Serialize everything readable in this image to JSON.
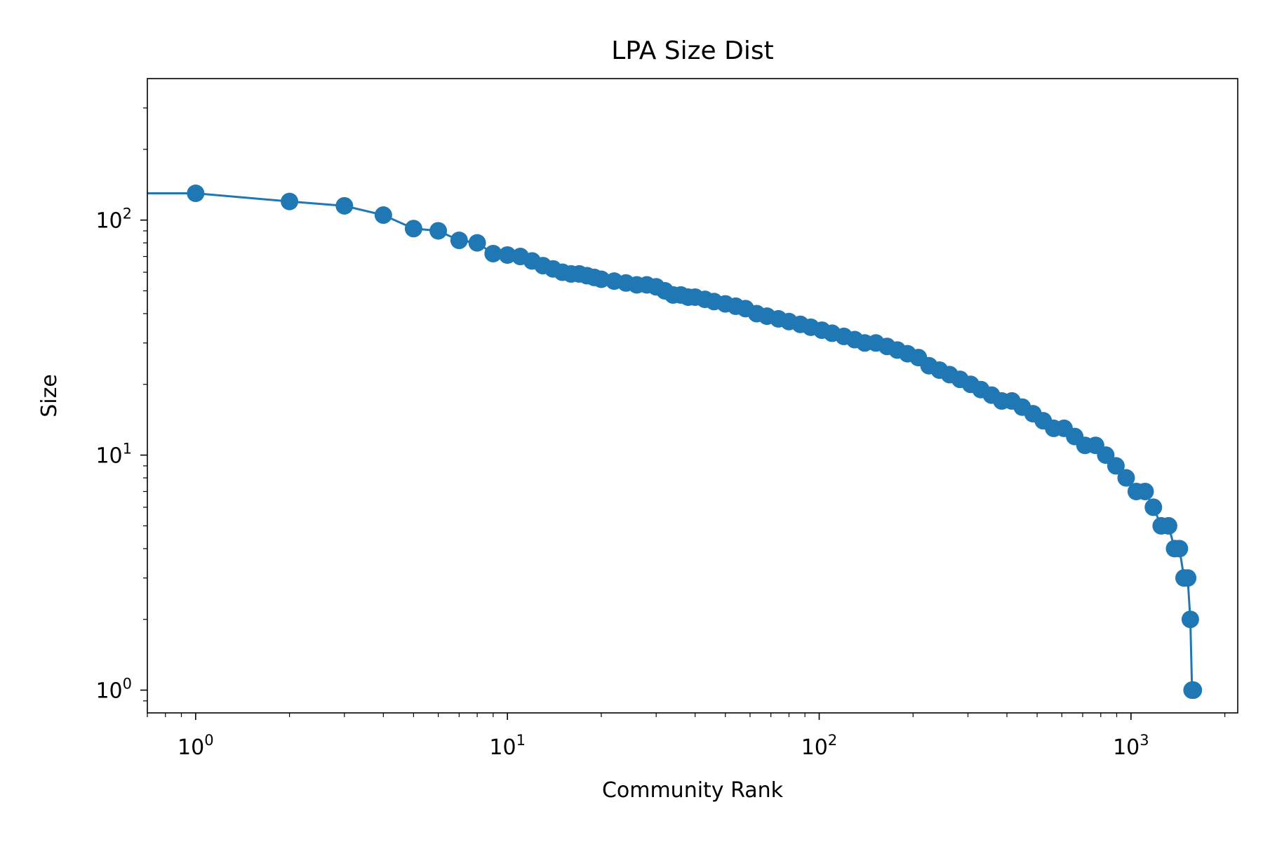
{
  "chart_data": {
    "type": "line",
    "title": "LPA Size Dist",
    "xlabel": "Community Rank",
    "ylabel": "Size",
    "xscale": "log",
    "yscale": "log",
    "xlim": [
      0.7,
      2200
    ],
    "ylim": [
      0.8,
      400
    ],
    "x_ticks": [
      {
        "base": "10",
        "exp": "0",
        "value": 1
      },
      {
        "base": "10",
        "exp": "1",
        "value": 10
      },
      {
        "base": "10",
        "exp": "2",
        "value": 100
      },
      {
        "base": "10",
        "exp": "3",
        "value": 1000
      }
    ],
    "y_ticks": [
      {
        "base": "10",
        "exp": "0",
        "value": 1
      },
      {
        "base": "10",
        "exp": "1",
        "value": 10
      },
      {
        "base": "10",
        "exp": "2",
        "value": 100
      }
    ],
    "grid": false,
    "legend": "none",
    "marker": "circle",
    "color": "#1f77b4",
    "series": [
      {
        "x": [
          1,
          2,
          3,
          4,
          5,
          6,
          7,
          8,
          9,
          10,
          11,
          12,
          13,
          14,
          15,
          16,
          17,
          18,
          19,
          20,
          22,
          24,
          26,
          28,
          30,
          32,
          34,
          36,
          38,
          40,
          43,
          46,
          50,
          54,
          58,
          63,
          68,
          74,
          80,
          87,
          94,
          102,
          110,
          120,
          130,
          140,
          152,
          165,
          178,
          192,
          208,
          225,
          243,
          262,
          283,
          306,
          330,
          357,
          385,
          415,
          448,
          485,
          523,
          565,
          610,
          660,
          712,
          770,
          830,
          895,
          965,
          1040,
          1110,
          1180,
          1250,
          1320,
          1380,
          1430,
          1480,
          1520,
          1550,
          1570,
          1585
        ],
        "y": [
          130,
          120,
          115,
          105,
          92,
          90,
          82,
          80,
          72,
          71,
          70,
          67,
          64,
          62,
          60,
          59,
          59,
          58,
          57,
          56,
          55,
          54,
          53,
          53,
          52,
          50,
          48,
          48,
          47,
          47,
          46,
          45,
          44,
          43,
          42,
          40,
          39,
          38,
          37,
          36,
          35,
          34,
          33,
          32,
          31,
          30,
          30,
          29,
          28,
          27,
          26,
          24,
          23,
          22,
          21,
          20,
          19,
          18,
          17,
          17,
          16,
          15,
          14,
          13,
          13,
          12,
          11,
          11,
          10,
          9,
          8,
          7,
          7,
          6,
          5,
          5,
          4,
          4,
          3,
          3,
          2,
          1,
          1
        ]
      }
    ]
  }
}
